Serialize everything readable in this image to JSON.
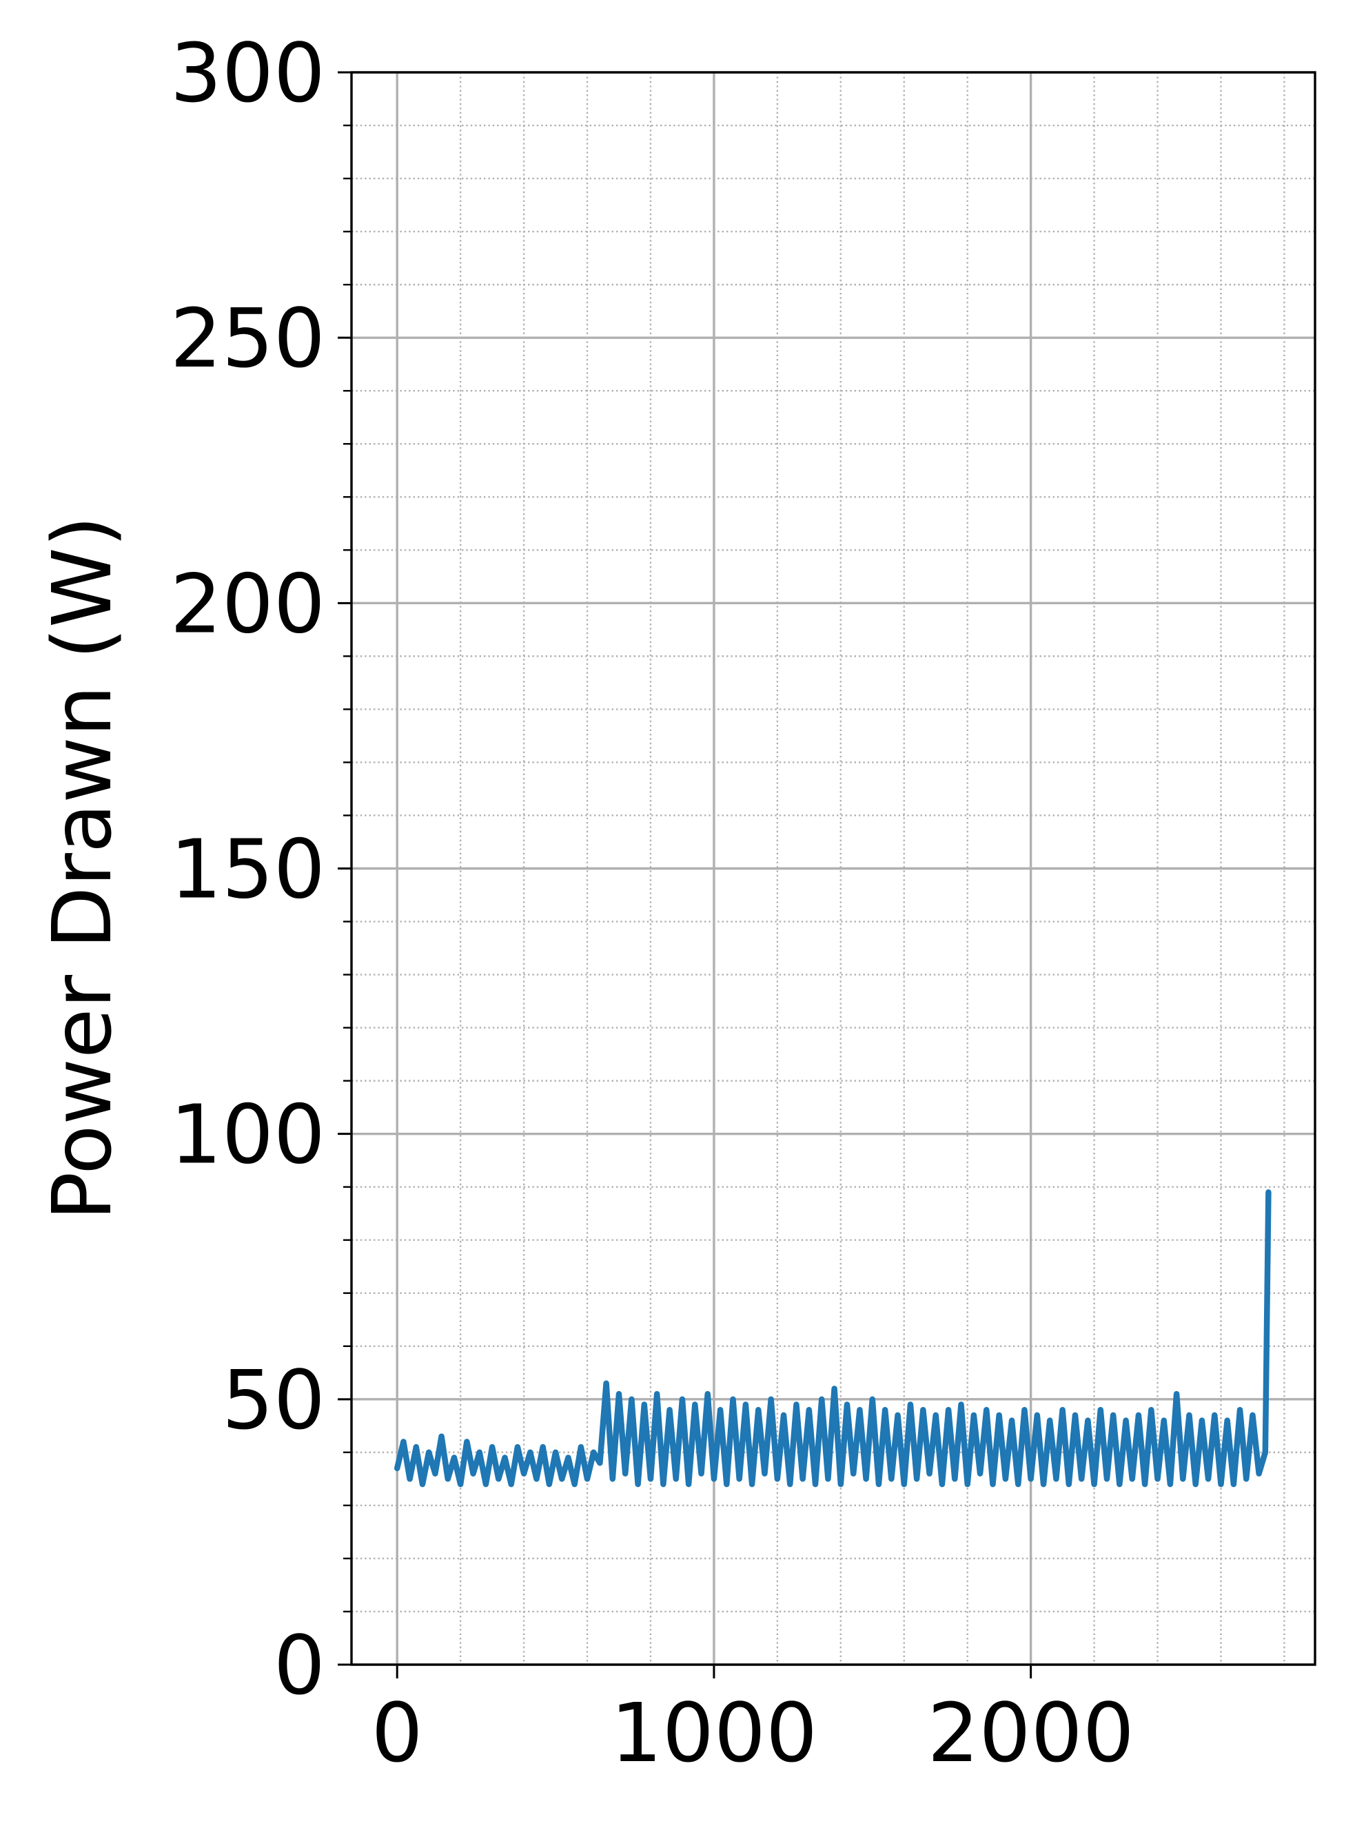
{
  "chart_data": {
    "type": "line",
    "y_label": "Power Drawn (W)",
    "color": "#1f77b4",
    "x": [
      0,
      20,
      40,
      60,
      80,
      100,
      120,
      140,
      160,
      180,
      200,
      220,
      240,
      260,
      280,
      300,
      320,
      340,
      360,
      380,
      400,
      420,
      440,
      460,
      480,
      500,
      520,
      540,
      560,
      580,
      600,
      620,
      640,
      660,
      680,
      700,
      720,
      740,
      760,
      780,
      800,
      820,
      840,
      860,
      880,
      900,
      920,
      940,
      960,
      980,
      1000,
      1020,
      1040,
      1060,
      1080,
      1100,
      1120,
      1140,
      1160,
      1180,
      1200,
      1220,
      1240,
      1260,
      1280,
      1300,
      1320,
      1340,
      1360,
      1380,
      1400,
      1420,
      1440,
      1460,
      1480,
      1500,
      1520,
      1540,
      1560,
      1580,
      1600,
      1620,
      1640,
      1660,
      1680,
      1700,
      1720,
      1740,
      1760,
      1780,
      1800,
      1820,
      1840,
      1860,
      1880,
      1900,
      1920,
      1940,
      1960,
      1980,
      2000,
      2020,
      2040,
      2060,
      2080,
      2100,
      2120,
      2140,
      2160,
      2180,
      2200,
      2220,
      2240,
      2260,
      2280,
      2300,
      2320,
      2340,
      2360,
      2380,
      2400,
      2420,
      2440,
      2460,
      2480,
      2500,
      2520,
      2540,
      2560,
      2580,
      2600,
      2620,
      2640,
      2660,
      2680,
      2700,
      2720,
      2740,
      2750
    ],
    "values": [
      37,
      42,
      35,
      41,
      34,
      40,
      36,
      43,
      35,
      39,
      34,
      42,
      36,
      40,
      34,
      41,
      35,
      39,
      34,
      41,
      36,
      40,
      35,
      41,
      34,
      40,
      35,
      39,
      34,
      41,
      35,
      40,
      38,
      53,
      35,
      51,
      36,
      50,
      34,
      49,
      35,
      51,
      34,
      48,
      35,
      50,
      34,
      49,
      36,
      51,
      35,
      48,
      34,
      50,
      35,
      49,
      34,
      48,
      36,
      50,
      35,
      47,
      34,
      49,
      35,
      48,
      34,
      50,
      35,
      52,
      34,
      49,
      36,
      48,
      35,
      50,
      34,
      48,
      35,
      47,
      34,
      49,
      35,
      48,
      36,
      47,
      34,
      48,
      35,
      49,
      34,
      47,
      36,
      48,
      34,
      47,
      35,
      46,
      34,
      48,
      35,
      47,
      34,
      46,
      35,
      48,
      34,
      47,
      35,
      46,
      34,
      48,
      35,
      47,
      34,
      46,
      35,
      47,
      34,
      48,
      35,
      46,
      34,
      51,
      35,
      47,
      34,
      46,
      35,
      47,
      34,
      46,
      34,
      48,
      35,
      47,
      36,
      40,
      89
    ],
    "xlim": [
      -144,
      2897
    ],
    "xticks": [
      0,
      1000,
      2000
    ],
    "ylim": [
      0,
      300
    ],
    "yticks": [
      0,
      50,
      100,
      150,
      200,
      250,
      300
    ],
    "xminorticks": [
      200,
      400,
      600,
      800,
      1200,
      1400,
      1600,
      1800,
      2200,
      2400,
      2600,
      2800
    ],
    "yminorticks": [
      10,
      20,
      30,
      40,
      60,
      70,
      80,
      90,
      110,
      120,
      130,
      140,
      160,
      170,
      180,
      190,
      210,
      220,
      230,
      240,
      260,
      270,
      280,
      290
    ],
    "grid": true,
    "minor_grid": true
  }
}
